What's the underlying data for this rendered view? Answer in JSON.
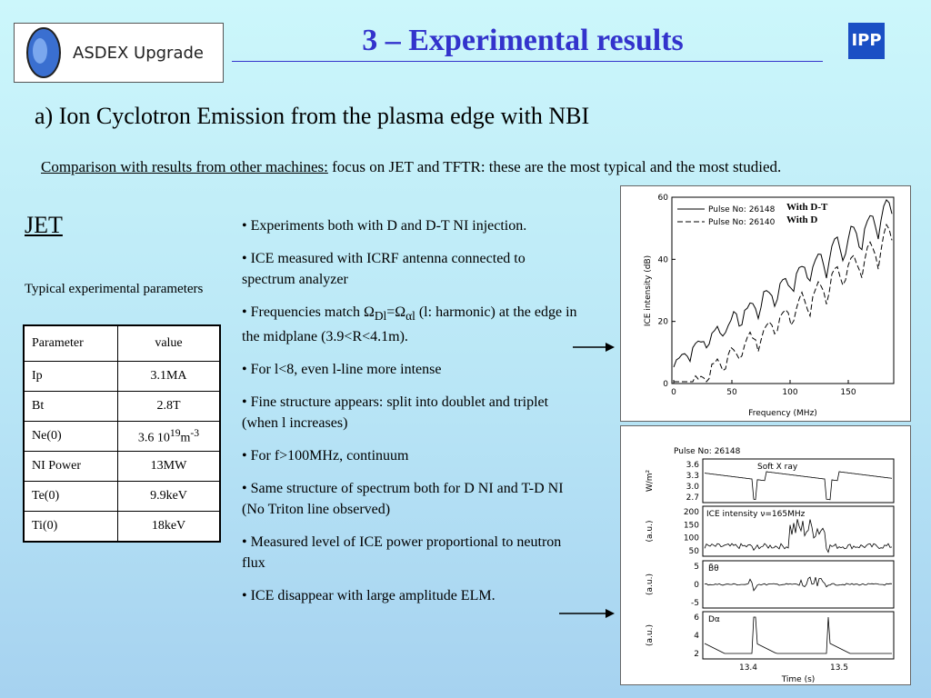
{
  "header": {
    "logo_text": "ASDEX Upgrade",
    "title": "3 – Experimental results",
    "ipp": "IPP"
  },
  "subtitle": "a) Ion Cyclotron Emission from the plasma edge with NBI",
  "intro": {
    "underlined": "Comparison with results from other machines:",
    "rest": " focus on JET and TFTR: these are the most typical and the most studied."
  },
  "jet": {
    "heading": "JET",
    "caption": "Typical experimental parameters",
    "table": {
      "header": [
        "Parameter",
        "value"
      ],
      "rows": [
        [
          "Ip",
          "3.1MA"
        ],
        [
          "Bt",
          "2.8T"
        ],
        [
          "Ne(0)",
          {
            "base": "3.6 10",
            "exp": "19",
            "unit": "m",
            "unit_exp": "-3"
          }
        ],
        [
          "NI Power",
          "13MW"
        ],
        [
          "Te(0)",
          "9.9keV"
        ],
        [
          "Ti(0)",
          "18keV"
        ]
      ]
    }
  },
  "bullets": [
    [
      {
        "text": "• Experiments both with D and D-T NI injection."
      }
    ],
    [
      {
        "text": "• ICE measured with ICRF antenna connected to spectrum analyzer"
      }
    ],
    [
      {
        "text": "• Frequencies match Ω"
      },
      {
        "sub": "Dl"
      },
      {
        "text": "=Ω"
      },
      {
        "sub": "αl"
      },
      {
        "text": " (l: harmonic) at the edge in the midplane (3.9<R<4.1m)."
      }
    ],
    [
      {
        "text": "• For l<8, even l-line more intense"
      }
    ],
    [
      {
        "text": "• Fine structure appears: split into doublet and triplet (when l increases)"
      }
    ],
    [
      {
        "text": "• For f>100MHz, continuum"
      }
    ],
    [
      {
        "text": "• Same structure of spectrum both for D NI and T-D NI (No Triton line observed)"
      }
    ],
    [
      {
        "text": "• Measured level of ICE power proportional to neutron flux"
      }
    ],
    [
      {
        "text": "• ICE disappear with large amplitude ELM."
      }
    ]
  ],
  "figure1": {
    "legend": [
      "Pulse No: 26148",
      "Pulse No: 26140"
    ],
    "annotations": [
      "With D-T",
      "With D"
    ],
    "ylabel": "ICE intensity (dB)",
    "xlabel": "Frequency (MHz)",
    "yticks": [
      "60",
      "40",
      "20",
      "0"
    ],
    "xticks": [
      "0",
      "50",
      "100",
      "150"
    ]
  },
  "figure2": {
    "title": "Pulse No: 26148",
    "xlabel": "Time (s)",
    "xticks": [
      "13.4",
      "13.5"
    ],
    "panels": [
      {
        "label": "Soft X ray",
        "ylabel": "W/m²",
        "yticks": [
          "3.6",
          "3.3",
          "3.0",
          "2.7"
        ]
      },
      {
        "label": "ICE intensity ν=165MHz",
        "ylabel": "(a.u.)",
        "yticks": [
          "200",
          "150",
          "100",
          "50"
        ]
      },
      {
        "label": "B̃θ",
        "ylabel": "(a.u.)",
        "yticks": [
          "5",
          "0",
          "-5"
        ]
      },
      {
        "label": "Dα",
        "ylabel": "(a.u.)",
        "yticks": [
          "6",
          "4",
          "2"
        ]
      }
    ]
  }
}
